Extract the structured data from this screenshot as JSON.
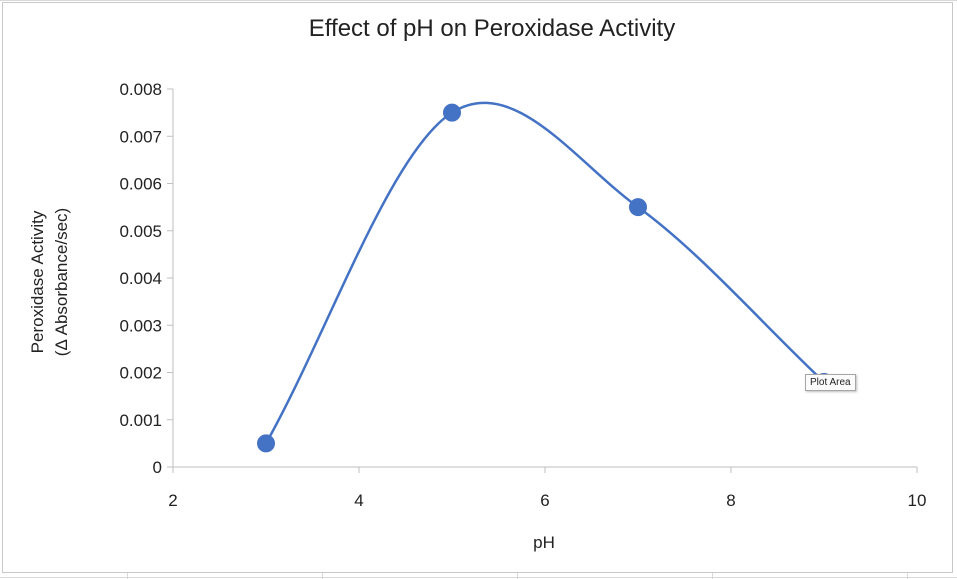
{
  "tooltip": {
    "label": "Plot Area"
  },
  "chart_data": {
    "type": "scatter",
    "title": "Effect of pH on Peroxidase Activity",
    "xlabel": "pH",
    "ylabel_lines": [
      "Peroxidase Activity",
      "(Δ Absorbance/sec)"
    ],
    "xlim": [
      2,
      10
    ],
    "ylim": [
      0,
      0.008
    ],
    "xticks": [
      2,
      4,
      6,
      8,
      10
    ],
    "xtick_labels": [
      "2",
      "4",
      "6",
      "8",
      "10"
    ],
    "yticks": [
      0,
      0.001,
      0.002,
      0.003,
      0.004,
      0.005,
      0.006,
      0.007,
      0.008
    ],
    "ytick_labels": [
      "0",
      "0.001",
      "0.002",
      "0.003",
      "0.004",
      "0.005",
      "0.006",
      "0.007",
      "0.008"
    ],
    "grid": false,
    "legend": "none",
    "line_style": "smoothed",
    "series": [
      {
        "color": "#4472c4",
        "x": [
          3,
          5,
          7,
          9
        ],
        "y": [
          0.0005,
          0.0075,
          0.0055,
          0.0018
        ]
      }
    ]
  }
}
